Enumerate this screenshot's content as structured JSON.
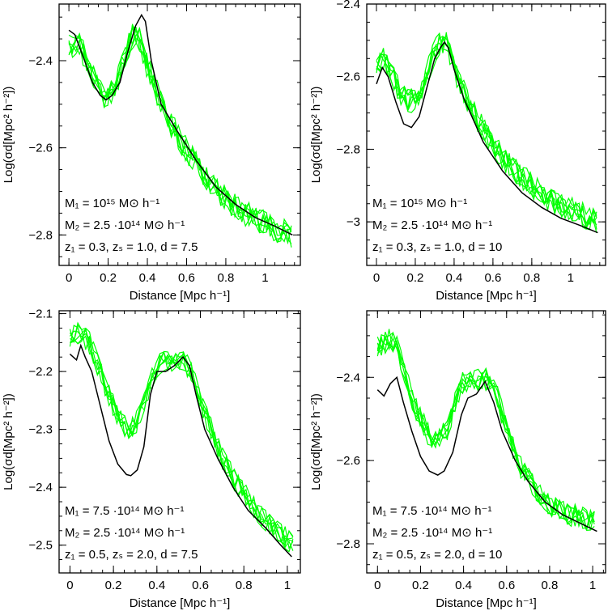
{
  "chart_data": [
    {
      "type": "line",
      "xlabel": "Distance [Mpc h⁻¹]",
      "ylabel": "Log(σd[Mpc² h⁻²])",
      "xlim": [
        -0.05,
        1.18
      ],
      "ylim": [
        -2.87,
        -2.27
      ],
      "xticks": [
        0,
        0.2,
        0.4,
        0.6,
        0.8,
        1
      ],
      "xtick_labels": [
        "0",
        "0.2",
        "0.4",
        "0.6",
        "0.8",
        "1"
      ],
      "yticks": [
        -2.8,
        -2.6,
        -2.4
      ],
      "ytick_labels": [
        "−2.8",
        "−2.6",
        "−2.4"
      ],
      "annotations": [
        "M₁ = 10¹⁵ M⊙ h⁻¹",
        "M₂ = 2.5 ·10¹⁴ M⊙ h⁻¹",
        "z₁ = 0.3, zₛ = 1.0, d = 7.5"
      ],
      "model": {
        "x": [
          0,
          0.03,
          0.08,
          0.12,
          0.16,
          0.19,
          0.22,
          0.26,
          0.3,
          0.34,
          0.37,
          0.39,
          0.42,
          0.47,
          0.55,
          0.65,
          0.75,
          0.85,
          0.95,
          1.05,
          1.14
        ],
        "y": [
          -2.33,
          -2.34,
          -2.4,
          -2.45,
          -2.48,
          -2.49,
          -2.48,
          -2.45,
          -2.38,
          -2.32,
          -2.295,
          -2.31,
          -2.4,
          -2.5,
          -2.56,
          -2.63,
          -2.69,
          -2.73,
          -2.76,
          -2.78,
          -2.8
        ]
      },
      "sim_template": {
        "x": [
          0,
          0.03,
          0.06,
          0.1,
          0.14,
          0.18,
          0.22,
          0.26,
          0.3,
          0.33,
          0.36,
          0.39,
          0.43,
          0.48,
          0.55,
          0.62,
          0.7,
          0.78,
          0.86,
          0.94,
          1.02,
          1.08,
          1.14
        ],
        "y": [
          -2.37,
          -2.36,
          -2.37,
          -2.41,
          -2.45,
          -2.48,
          -2.47,
          -2.43,
          -2.37,
          -2.34,
          -2.35,
          -2.4,
          -2.45,
          -2.51,
          -2.57,
          -2.62,
          -2.67,
          -2.71,
          -2.74,
          -2.76,
          -2.78,
          -2.79,
          -2.8
        ]
      },
      "sim_curves": 7,
      "sim_noise": 0.03
    },
    {
      "type": "line",
      "xlabel": "Distance [Mpc h⁻¹]",
      "ylabel": "Log(σd[Mpc² h⁻²])",
      "xlim": [
        -0.05,
        1.18
      ],
      "ylim": [
        -3.12,
        -2.4
      ],
      "xticks": [
        0,
        0.2,
        0.4,
        0.6,
        0.8,
        1
      ],
      "xtick_labels": [
        "0",
        "0.2",
        "0.4",
        "0.6",
        "0.8",
        "1"
      ],
      "yticks": [
        -3,
        -2.8,
        -2.6,
        -2.4
      ],
      "ytick_labels": [
        "−3",
        "−2.8",
        "−2.6",
        "−2.4"
      ],
      "annotations": [
        "M₁ = 10¹⁵ M⊙ h⁻¹",
        "M₂ = 2.5 ·10¹⁴ M⊙ h⁻¹",
        "z₁ = 0.3, zₛ = 1.0, d = 10"
      ],
      "model": {
        "x": [
          0,
          0.03,
          0.06,
          0.1,
          0.14,
          0.18,
          0.22,
          0.26,
          0.3,
          0.33,
          0.35,
          0.37,
          0.4,
          0.45,
          0.55,
          0.65,
          0.75,
          0.85,
          0.95,
          1.05,
          1.14
        ],
        "y": [
          -2.62,
          -2.575,
          -2.6,
          -2.67,
          -2.73,
          -2.74,
          -2.71,
          -2.63,
          -2.55,
          -2.52,
          -2.505,
          -2.52,
          -2.58,
          -2.66,
          -2.78,
          -2.86,
          -2.92,
          -2.96,
          -2.99,
          -3.01,
          -3.03
        ]
      },
      "sim_template": {
        "x": [
          0,
          0.04,
          0.08,
          0.12,
          0.16,
          0.2,
          0.24,
          0.28,
          0.31,
          0.34,
          0.36,
          0.39,
          0.43,
          0.5,
          0.58,
          0.66,
          0.74,
          0.82,
          0.9,
          0.98,
          1.06,
          1.14
        ],
        "y": [
          -2.56,
          -2.55,
          -2.59,
          -2.64,
          -2.67,
          -2.66,
          -2.62,
          -2.56,
          -2.52,
          -2.5,
          -2.51,
          -2.56,
          -2.62,
          -2.7,
          -2.77,
          -2.83,
          -2.87,
          -2.91,
          -2.94,
          -2.96,
          -2.98,
          -3.0
        ]
      },
      "sim_curves": 7,
      "sim_noise": 0.035
    },
    {
      "type": "line",
      "xlabel": "Distance [Mpc h⁻¹]",
      "ylabel": "Log(σd[Mpc² h⁻²])",
      "xlim": [
        -0.05,
        1.06
      ],
      "ylim": [
        -2.548,
        -2.095
      ],
      "xticks": [
        0,
        0.2,
        0.4,
        0.6,
        0.8,
        1
      ],
      "xtick_labels": [
        "0",
        "0.2",
        "0.4",
        "0.6",
        "0.8",
        "1"
      ],
      "yticks": [
        -2.5,
        -2.4,
        -2.3,
        -2.2,
        -2.1
      ],
      "ytick_labels": [
        "−2.5",
        "−2.4",
        "−2.3",
        "−2.2",
        "−2.1"
      ],
      "annotations": [
        "M₁ = 7.5 ·10¹⁴ M⊙ h⁻¹",
        "M₂ = 2.5 ·10¹⁴ M⊙ h⁻¹",
        "z₁ = 0.5, zₛ = 2.0, d = 7.5"
      ],
      "model": {
        "x": [
          0,
          0.03,
          0.05,
          0.07,
          0.1,
          0.14,
          0.18,
          0.22,
          0.26,
          0.28,
          0.31,
          0.34,
          0.37,
          0.4,
          0.44,
          0.48,
          0.52,
          0.55,
          0.58,
          0.62,
          0.68,
          0.75,
          0.82,
          0.9,
          0.97,
          1.02
        ],
        "y": [
          -2.17,
          -2.18,
          -2.155,
          -2.175,
          -2.2,
          -2.26,
          -2.32,
          -2.36,
          -2.378,
          -2.38,
          -2.37,
          -2.33,
          -2.24,
          -2.2,
          -2.2,
          -2.19,
          -2.175,
          -2.19,
          -2.24,
          -2.3,
          -2.35,
          -2.4,
          -2.44,
          -2.47,
          -2.5,
          -2.52
        ]
      },
      "sim_template": {
        "x": [
          0,
          0.03,
          0.06,
          0.09,
          0.12,
          0.16,
          0.2,
          0.24,
          0.28,
          0.32,
          0.36,
          0.4,
          0.44,
          0.48,
          0.52,
          0.56,
          0.6,
          0.65,
          0.7,
          0.76,
          0.82,
          0.88,
          0.94,
          1.0,
          1.03
        ],
        "y": [
          -2.14,
          -2.135,
          -2.14,
          -2.15,
          -2.18,
          -2.22,
          -2.26,
          -2.29,
          -2.3,
          -2.28,
          -2.23,
          -2.19,
          -2.18,
          -2.18,
          -2.18,
          -2.2,
          -2.25,
          -2.3,
          -2.35,
          -2.39,
          -2.42,
          -2.45,
          -2.47,
          -2.49,
          -2.5
        ]
      },
      "sim_curves": 7,
      "sim_noise": 0.02
    },
    {
      "type": "line",
      "xlabel": "Distance [Mpc h⁻¹]",
      "ylabel": "Log(σd[Mpc² h⁻²])",
      "xlim": [
        -0.05,
        1.06
      ],
      "ylim": [
        -2.87,
        -2.24
      ],
      "xticks": [
        0,
        0.2,
        0.4,
        0.6,
        0.8,
        1
      ],
      "xtick_labels": [
        "0",
        "0.2",
        "0.4",
        "0.6",
        "0.8",
        "1"
      ],
      "yticks": [
        -2.8,
        -2.6,
        -2.4
      ],
      "ytick_labels": [
        "−2.8",
        "−2.6",
        "−2.4"
      ],
      "annotations": [
        "M₁ = 7.5 ·10¹⁴ M⊙ h⁻¹",
        "M₂ = 2.5 ·10¹⁴ M⊙ h⁻¹",
        "z₁ = 0.5, zₛ = 2.0, d = 10"
      ],
      "model": {
        "x": [
          0,
          0.03,
          0.06,
          0.09,
          0.12,
          0.16,
          0.2,
          0.24,
          0.28,
          0.31,
          0.35,
          0.39,
          0.42,
          0.46,
          0.5,
          0.54,
          0.58,
          0.64,
          0.7,
          0.78,
          0.86,
          0.94,
          1.02
        ],
        "y": [
          -2.43,
          -2.445,
          -2.415,
          -2.4,
          -2.46,
          -2.53,
          -2.59,
          -2.625,
          -2.635,
          -2.625,
          -2.58,
          -2.49,
          -2.45,
          -2.44,
          -2.41,
          -2.46,
          -2.53,
          -2.6,
          -2.65,
          -2.7,
          -2.73,
          -2.75,
          -2.77
        ]
      },
      "sim_template": {
        "x": [
          0,
          0.03,
          0.06,
          0.09,
          0.12,
          0.16,
          0.2,
          0.24,
          0.28,
          0.32,
          0.36,
          0.4,
          0.44,
          0.48,
          0.52,
          0.56,
          0.6,
          0.66,
          0.72,
          0.78,
          0.84,
          0.9,
          0.96,
          1.02
        ],
        "y": [
          -2.33,
          -2.32,
          -2.31,
          -2.33,
          -2.38,
          -2.45,
          -2.5,
          -2.54,
          -2.55,
          -2.53,
          -2.46,
          -2.41,
          -2.4,
          -2.41,
          -2.4,
          -2.45,
          -2.53,
          -2.61,
          -2.66,
          -2.7,
          -2.72,
          -2.73,
          -2.74,
          -2.74
        ]
      },
      "sim_curves": 7,
      "sim_noise": 0.028
    }
  ],
  "colors": {
    "model": "#000000",
    "simulation": "#00ff00",
    "axes": "#000000"
  }
}
